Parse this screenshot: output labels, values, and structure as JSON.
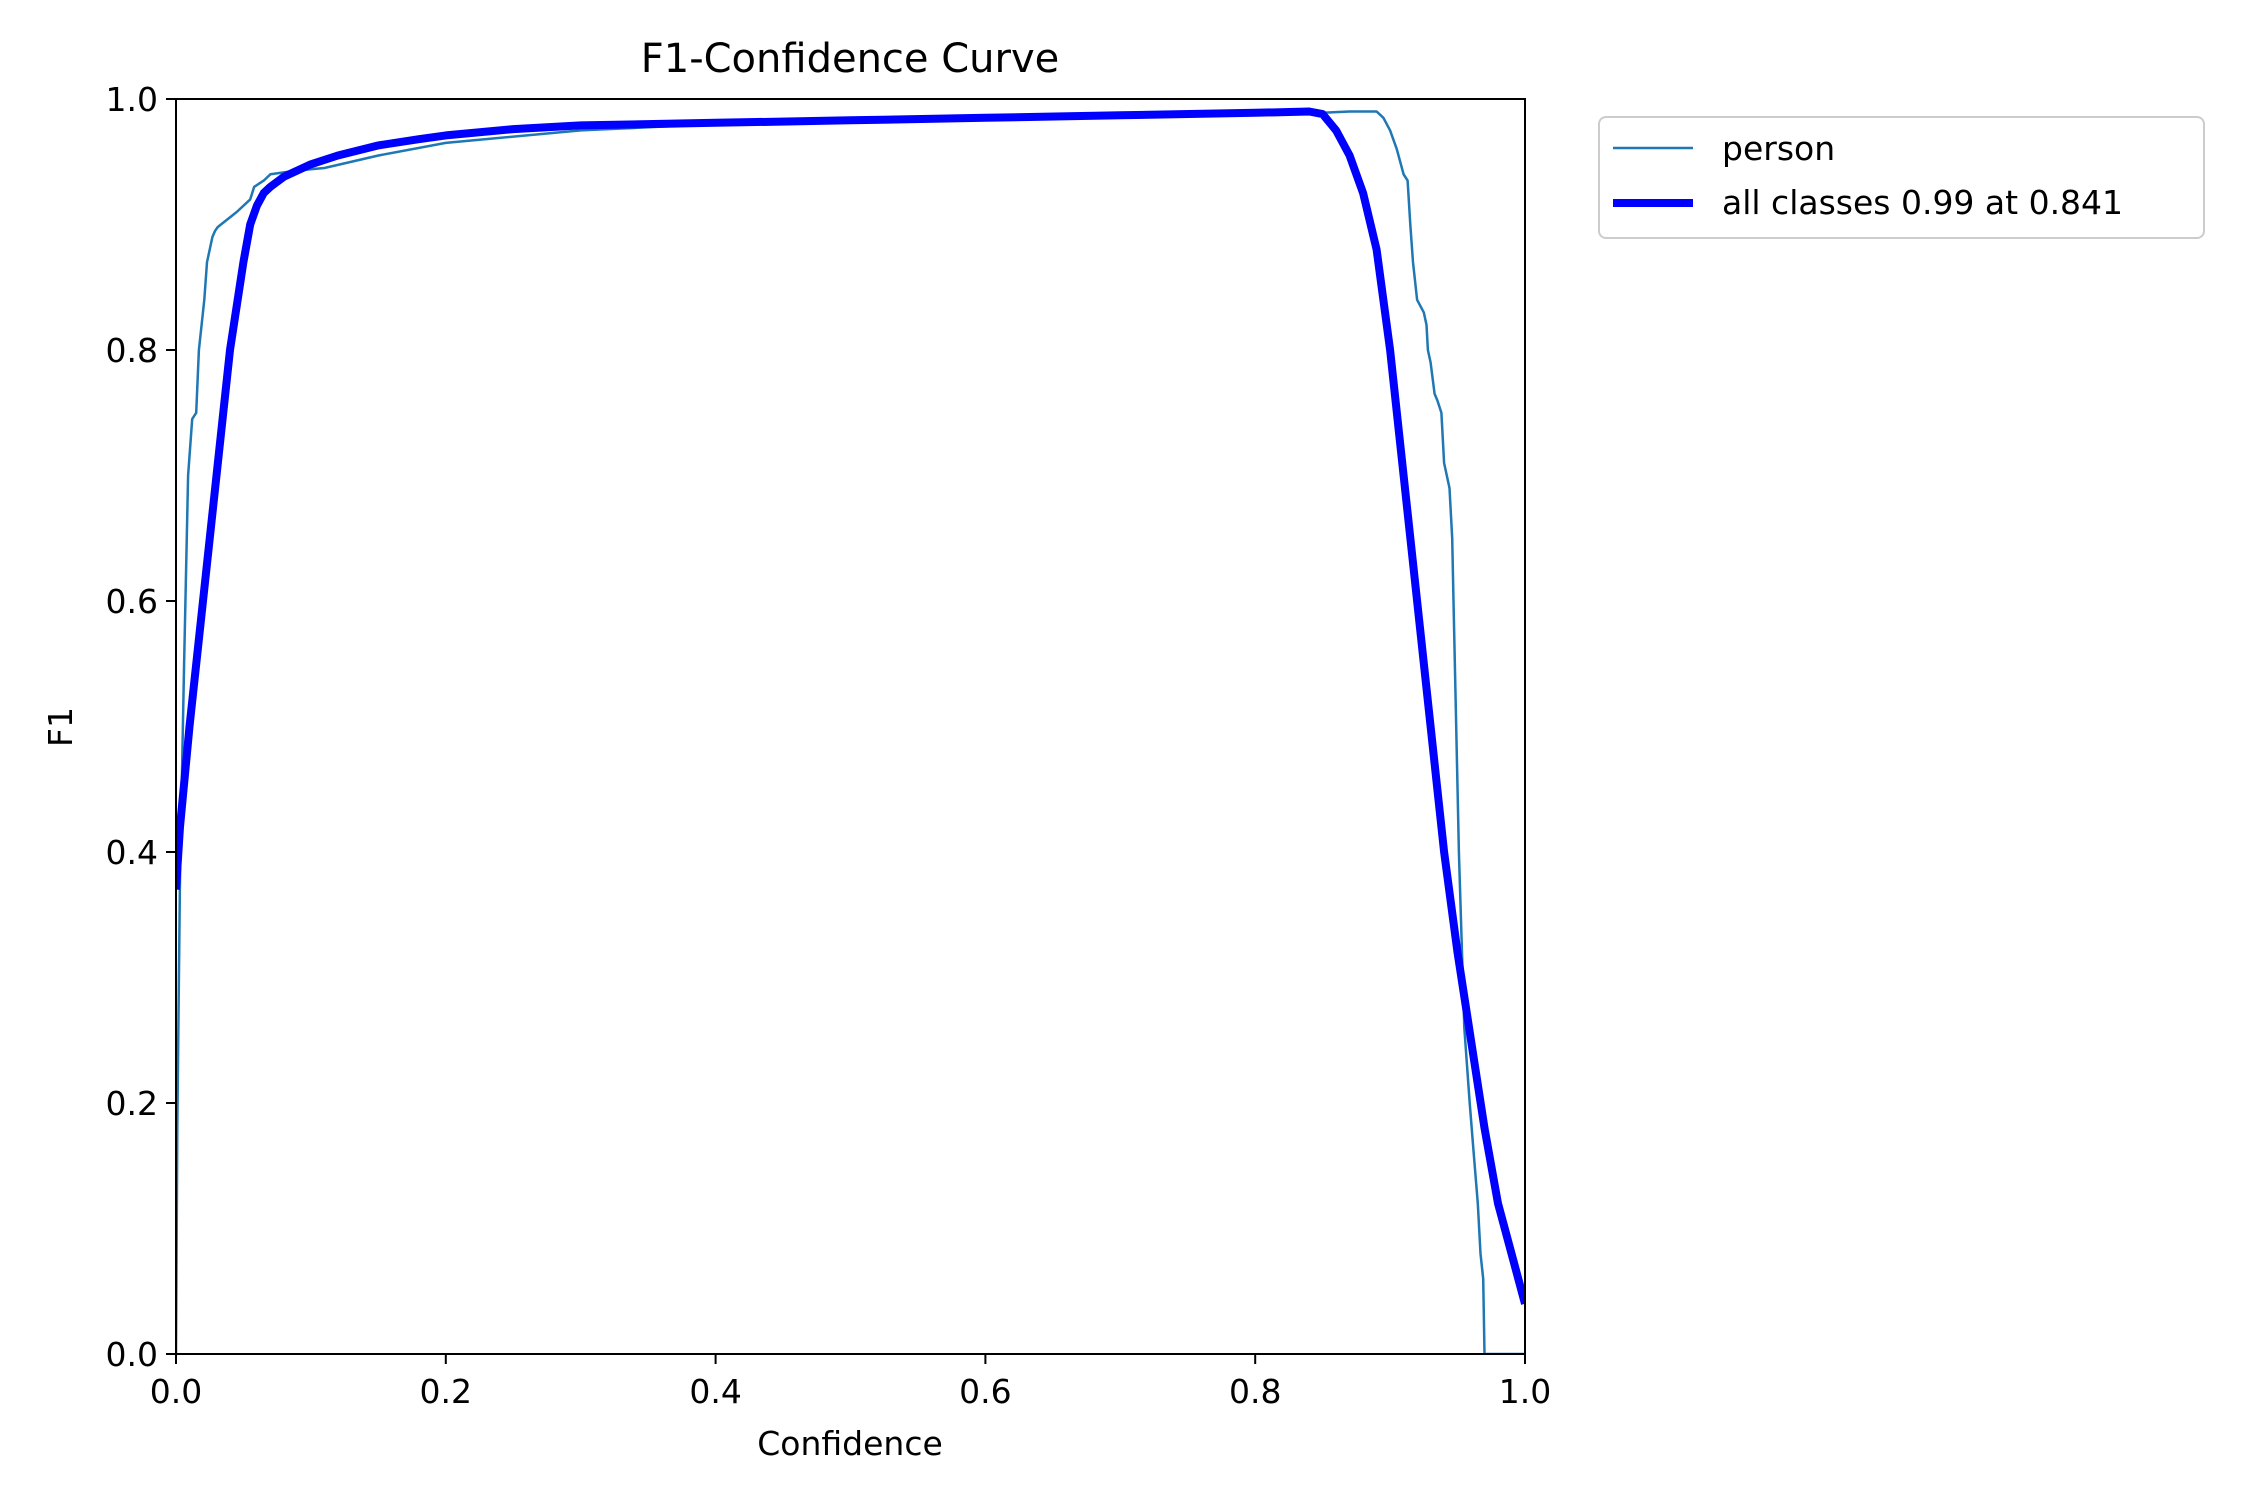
{
  "chart_data": {
    "type": "line",
    "title": "F1-Confidence Curve",
    "xlabel": "Confidence",
    "ylabel": "F1",
    "xlim": [
      0,
      1
    ],
    "ylim": [
      0,
      1
    ],
    "grid": false,
    "legend_position": "outside top-right",
    "x_ticks": [
      "0.0",
      "0.2",
      "0.4",
      "0.6",
      "0.8",
      "1.0"
    ],
    "y_ticks": [
      "0.0",
      "0.2",
      "0.4",
      "0.6",
      "0.8",
      "1.0"
    ],
    "series": [
      {
        "name": "person",
        "color": "#1f77b4",
        "style": "thin",
        "x": [
          0.0,
          0.001,
          0.003,
          0.006,
          0.009,
          0.012,
          0.015,
          0.017,
          0.019,
          0.021,
          0.023,
          0.025,
          0.027,
          0.029,
          0.031,
          0.045,
          0.055,
          0.058,
          0.065,
          0.07,
          0.09,
          0.11,
          0.15,
          0.2,
          0.3,
          0.4,
          0.5,
          0.6,
          0.7,
          0.8,
          0.85,
          0.87,
          0.89,
          0.895,
          0.9,
          0.905,
          0.91,
          0.913,
          0.915,
          0.917,
          0.92,
          0.925,
          0.927,
          0.928,
          0.93,
          0.933,
          0.935,
          0.938,
          0.94,
          0.942,
          0.944,
          0.946,
          0.947,
          0.949,
          0.951,
          0.955,
          0.957,
          0.959,
          0.962,
          0.965,
          0.967,
          0.969,
          0.97,
          0.975,
          1.0
        ],
        "y": [
          0.0,
          0.18,
          0.38,
          0.55,
          0.7,
          0.745,
          0.75,
          0.8,
          0.82,
          0.84,
          0.87,
          0.88,
          0.89,
          0.895,
          0.898,
          0.91,
          0.92,
          0.93,
          0.935,
          0.94,
          0.943,
          0.945,
          0.955,
          0.965,
          0.975,
          0.98,
          0.983,
          0.985,
          0.987,
          0.988,
          0.989,
          0.99,
          0.99,
          0.985,
          0.975,
          0.96,
          0.94,
          0.935,
          0.9,
          0.87,
          0.84,
          0.83,
          0.82,
          0.8,
          0.79,
          0.765,
          0.76,
          0.75,
          0.71,
          0.7,
          0.69,
          0.65,
          0.6,
          0.5,
          0.4,
          0.26,
          0.23,
          0.2,
          0.16,
          0.12,
          0.08,
          0.06,
          0.0,
          0.0,
          0.0
        ]
      },
      {
        "name": "all classes 0.99 at 0.841",
        "color": "#0000ff",
        "style": "thick",
        "x": [
          0.0,
          0.003,
          0.01,
          0.02,
          0.03,
          0.04,
          0.05,
          0.055,
          0.06,
          0.065,
          0.07,
          0.08,
          0.1,
          0.12,
          0.15,
          0.18,
          0.2,
          0.25,
          0.3,
          0.4,
          0.5,
          0.6,
          0.7,
          0.8,
          0.84,
          0.85,
          0.86,
          0.87,
          0.88,
          0.89,
          0.9,
          0.91,
          0.92,
          0.93,
          0.94,
          0.95,
          0.96,
          0.97,
          0.98,
          0.99,
          1.0
        ],
        "y": [
          0.37,
          0.42,
          0.5,
          0.6,
          0.7,
          0.8,
          0.87,
          0.9,
          0.915,
          0.925,
          0.93,
          0.938,
          0.948,
          0.955,
          0.963,
          0.968,
          0.971,
          0.976,
          0.979,
          0.981,
          0.983,
          0.985,
          0.987,
          0.989,
          0.99,
          0.988,
          0.975,
          0.955,
          0.925,
          0.88,
          0.8,
          0.7,
          0.6,
          0.5,
          0.4,
          0.32,
          0.25,
          0.18,
          0.12,
          0.08,
          0.04
        ]
      }
    ]
  }
}
